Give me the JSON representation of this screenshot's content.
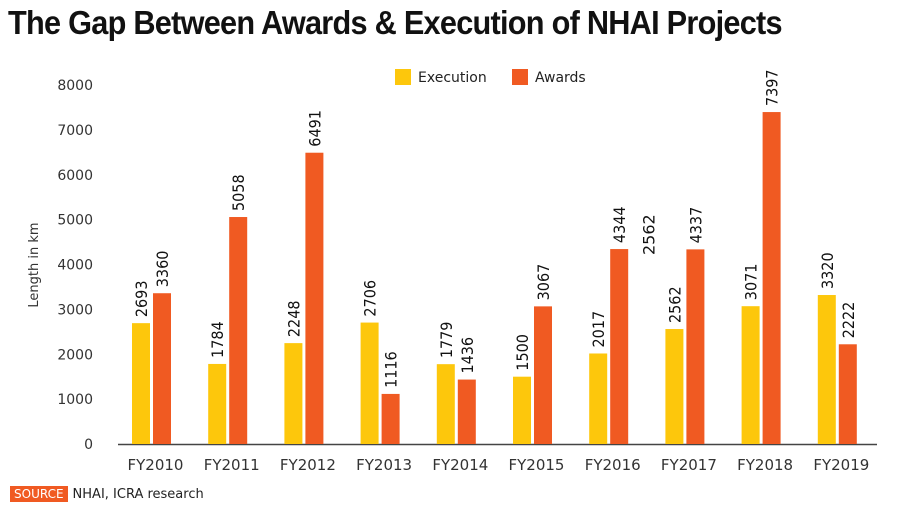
{
  "title": "The Gap Between Awards & Execution of NHAI Projects",
  "source": {
    "tag": "SOURCE",
    "text": "NHAI, ICRA research"
  },
  "chart_data": {
    "type": "bar",
    "title": "The Gap Between Awards & Execution of NHAI Projects",
    "xlabel": "",
    "ylabel": "Length in km",
    "ylim": [
      0,
      8000
    ],
    "yticks": [
      0,
      1000,
      2000,
      3000,
      4000,
      5000,
      6000,
      7000,
      8000
    ],
    "grid": false,
    "legend": "top-center",
    "categories": [
      "FY2010",
      "FY2011",
      "FY2012",
      "FY2013",
      "FY2014",
      "FY2015",
      "FY2016",
      "FY2017",
      "FY2018",
      "FY2019"
    ],
    "series": [
      {
        "name": "Execution",
        "color": "#fdc70c",
        "values": [
          2693,
          1784,
          2248,
          2706,
          1779,
          1500,
          2017,
          2562,
          3071,
          3320
        ]
      },
      {
        "name": "Awards",
        "color": "#f05a22",
        "values": [
          3360,
          5058,
          6491,
          1116,
          1436,
          3067,
          4344,
          4337,
          7397,
          2222
        ]
      }
    ],
    "annotations": [
      {
        "text": "2562",
        "near": "FY2016"
      }
    ]
  }
}
